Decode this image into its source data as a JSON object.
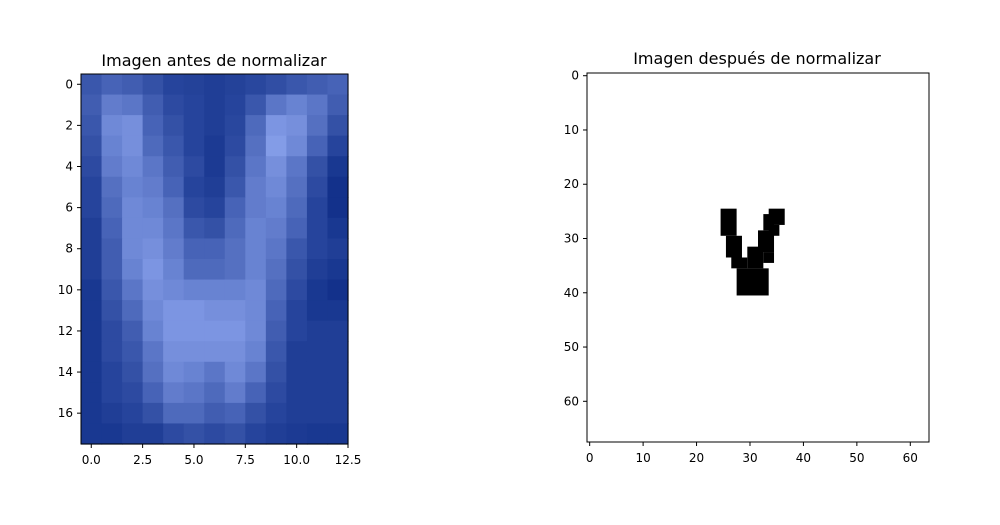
{
  "figure": {
    "left_title": "Imagen antes de normalizar",
    "right_title": "Imagen después de normalizar"
  },
  "chart_data": [
    {
      "type": "heatmap",
      "title": "Imagen antes de normalizar",
      "xlim": [
        -0.5,
        12.5
      ],
      "ylim": [
        17.5,
        -0.5
      ],
      "x_ticks": [
        "0.0",
        "2.5",
        "5.0",
        "7.5",
        "10.0",
        "12.5"
      ],
      "x_tick_values": [
        0,
        2.5,
        5,
        7.5,
        10,
        12.5
      ],
      "y_ticks": [
        "0",
        "2",
        "4",
        "6",
        "8",
        "10",
        "12",
        "14",
        "16"
      ],
      "y_tick_values": [
        0,
        2,
        4,
        6,
        8,
        10,
        12,
        14,
        16
      ],
      "colors": {
        "dark": "#0c2b86",
        "light": "#90a8f2"
      },
      "matrix": [
        [
          0.35,
          0.45,
          0.4,
          0.3,
          0.2,
          0.18,
          0.15,
          0.18,
          0.22,
          0.28,
          0.35,
          0.4,
          0.45
        ],
        [
          0.4,
          0.65,
          0.6,
          0.4,
          0.25,
          0.2,
          0.15,
          0.2,
          0.35,
          0.6,
          0.7,
          0.6,
          0.4
        ],
        [
          0.35,
          0.75,
          0.8,
          0.45,
          0.3,
          0.2,
          0.15,
          0.22,
          0.5,
          0.85,
          0.8,
          0.55,
          0.3
        ],
        [
          0.3,
          0.7,
          0.8,
          0.5,
          0.35,
          0.2,
          0.12,
          0.25,
          0.55,
          0.9,
          0.75,
          0.45,
          0.2
        ],
        [
          0.25,
          0.65,
          0.75,
          0.6,
          0.4,
          0.25,
          0.12,
          0.3,
          0.6,
          0.8,
          0.6,
          0.3,
          0.1
        ],
        [
          0.2,
          0.55,
          0.7,
          0.65,
          0.45,
          0.2,
          0.15,
          0.35,
          0.65,
          0.75,
          0.55,
          0.25,
          0.05
        ],
        [
          0.2,
          0.5,
          0.75,
          0.7,
          0.55,
          0.25,
          0.2,
          0.45,
          0.65,
          0.7,
          0.5,
          0.2,
          0.05
        ],
        [
          0.15,
          0.45,
          0.75,
          0.75,
          0.6,
          0.35,
          0.3,
          0.5,
          0.7,
          0.65,
          0.45,
          0.2,
          0.1
        ],
        [
          0.15,
          0.4,
          0.75,
          0.8,
          0.65,
          0.45,
          0.45,
          0.55,
          0.7,
          0.6,
          0.35,
          0.2,
          0.15
        ],
        [
          0.15,
          0.4,
          0.7,
          0.85,
          0.7,
          0.5,
          0.5,
          0.55,
          0.7,
          0.55,
          0.3,
          0.15,
          0.1
        ],
        [
          0.1,
          0.35,
          0.6,
          0.8,
          0.75,
          0.7,
          0.7,
          0.7,
          0.75,
          0.5,
          0.25,
          0.1,
          0.05
        ],
        [
          0.1,
          0.3,
          0.5,
          0.75,
          0.85,
          0.85,
          0.8,
          0.8,
          0.75,
          0.45,
          0.2,
          0.1,
          0.1
        ],
        [
          0.1,
          0.25,
          0.4,
          0.7,
          0.85,
          0.85,
          0.85,
          0.85,
          0.75,
          0.4,
          0.2,
          0.15,
          0.15
        ],
        [
          0.1,
          0.25,
          0.35,
          0.6,
          0.8,
          0.8,
          0.8,
          0.8,
          0.7,
          0.35,
          0.15,
          0.15,
          0.15
        ],
        [
          0.1,
          0.2,
          0.3,
          0.55,
          0.75,
          0.7,
          0.6,
          0.75,
          0.6,
          0.3,
          0.15,
          0.15,
          0.15
        ],
        [
          0.1,
          0.2,
          0.25,
          0.45,
          0.65,
          0.6,
          0.5,
          0.65,
          0.45,
          0.25,
          0.15,
          0.15,
          0.15
        ],
        [
          0.1,
          0.15,
          0.2,
          0.3,
          0.5,
          0.5,
          0.4,
          0.45,
          0.3,
          0.2,
          0.15,
          0.15,
          0.15
        ],
        [
          0.1,
          0.1,
          0.15,
          0.15,
          0.25,
          0.3,
          0.25,
          0.3,
          0.2,
          0.15,
          0.12,
          0.1,
          0.1
        ]
      ]
    },
    {
      "type": "heatmap",
      "title": "Imagen después de normalizar",
      "xlim": [
        -0.5,
        63.5
      ],
      "ylim": [
        67.5,
        -0.5
      ],
      "x_ticks": [
        "0",
        "10",
        "20",
        "30",
        "40",
        "50",
        "60"
      ],
      "x_tick_values": [
        0,
        10,
        20,
        30,
        40,
        50,
        60
      ],
      "y_ticks": [
        "0",
        "10",
        "20",
        "30",
        "40",
        "50",
        "60"
      ],
      "y_tick_values": [
        0,
        10,
        20,
        30,
        40,
        50,
        60
      ],
      "colors": {
        "on": "#000000",
        "off": "#ffffff"
      },
      "black_pixel_rects": [
        {
          "x0": 25,
          "x1": 28,
          "y0": 25,
          "y1": 30
        },
        {
          "x0": 26,
          "x1": 29,
          "y0": 30,
          "y1": 34
        },
        {
          "x0": 27,
          "x1": 30,
          "y0": 34,
          "y1": 36
        },
        {
          "x0": 28,
          "x1": 34,
          "y0": 36,
          "y1": 41
        },
        {
          "x0": 30,
          "x1": 33,
          "y0": 32,
          "y1": 36
        },
        {
          "x0": 33,
          "x1": 35,
          "y0": 33,
          "y1": 35
        },
        {
          "x0": 32,
          "x1": 35,
          "y0": 29,
          "y1": 33
        },
        {
          "x0": 33,
          "x1": 35,
          "y0": 26,
          "y1": 29
        },
        {
          "x0": 34,
          "x1": 37,
          "y0": 25,
          "y1": 28
        },
        {
          "x0": 34,
          "x1": 36,
          "y0": 28,
          "y1": 30
        }
      ]
    }
  ]
}
